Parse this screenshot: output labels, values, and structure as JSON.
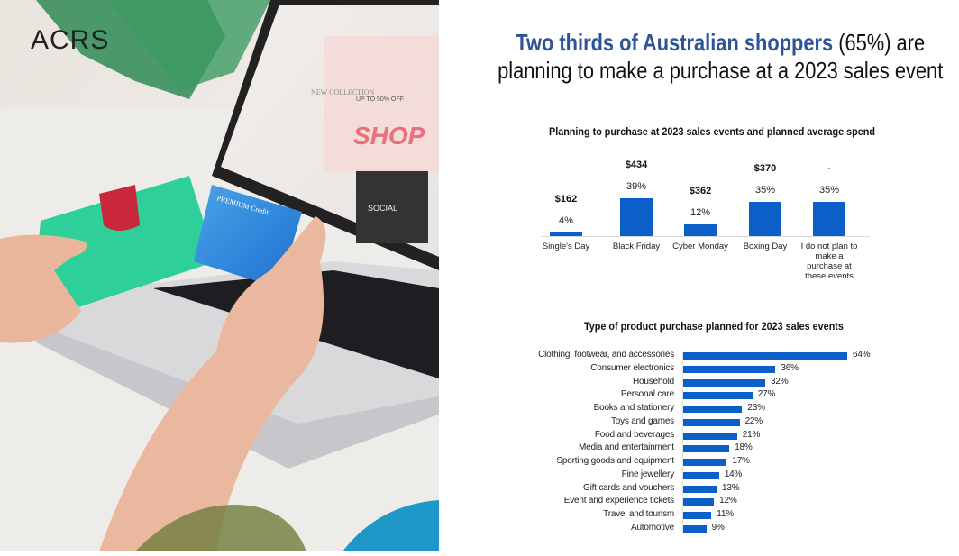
{
  "brand": {
    "logo_text": "ACRS"
  },
  "photo": {
    "screen_text_1": "NEW COLLECTION",
    "screen_text_2": "UP TO 50% OFF",
    "screen_text_3": "SHOP",
    "screen_text_4": "SOCIAL",
    "card_text": "PREMIUM Credit"
  },
  "headline": {
    "highlight": "Two thirds of Australian shoppers",
    "rest_line1": " (65%) are",
    "line2": "planning to make a purchase at a 2023 sales event"
  },
  "colors": {
    "bar": "#0b5fc9",
    "headline_accent": "#2e5496"
  },
  "chart_data": [
    {
      "type": "bar",
      "title": "Planning to purchase at 2023 sales events and planned average spend",
      "categories": [
        "Single's Day",
        "Black Friday",
        "Cyber Monday",
        "Boxing Day",
        "I do not plan to make a purchase at these events"
      ],
      "values": [
        4,
        39,
        12,
        35,
        35
      ],
      "value_labels": [
        "4%",
        "39%",
        "12%",
        "35%",
        "35%"
      ],
      "spend_labels": [
        "$162",
        "$434",
        "$362",
        "$370",
        "-"
      ],
      "unit": "%",
      "grid": false
    },
    {
      "type": "bar",
      "orientation": "horizontal",
      "title": "Type of product purchase planned for 2023 sales events",
      "categories": [
        "Clothing, footwear, and accessories",
        "Consumer electronics",
        "Household",
        "Personal care",
        "Books and stationery",
        "Toys and games",
        "Food and beverages",
        "Media and entertainment",
        "Sporting goods and equipment",
        "Fine jewellery",
        "Gift cards and vouchers",
        "Event and experience tickets",
        "Travel and tourism",
        "Automotive"
      ],
      "values": [
        64,
        36,
        32,
        27,
        23,
        22,
        21,
        18,
        17,
        14,
        13,
        12,
        11,
        9
      ],
      "value_labels": [
        "64%",
        "36%",
        "32%",
        "27%",
        "23%",
        "22%",
        "21%",
        "18%",
        "17%",
        "14%",
        "13%",
        "12%",
        "11%",
        "9%"
      ],
      "unit": "%",
      "grid": false
    }
  ]
}
